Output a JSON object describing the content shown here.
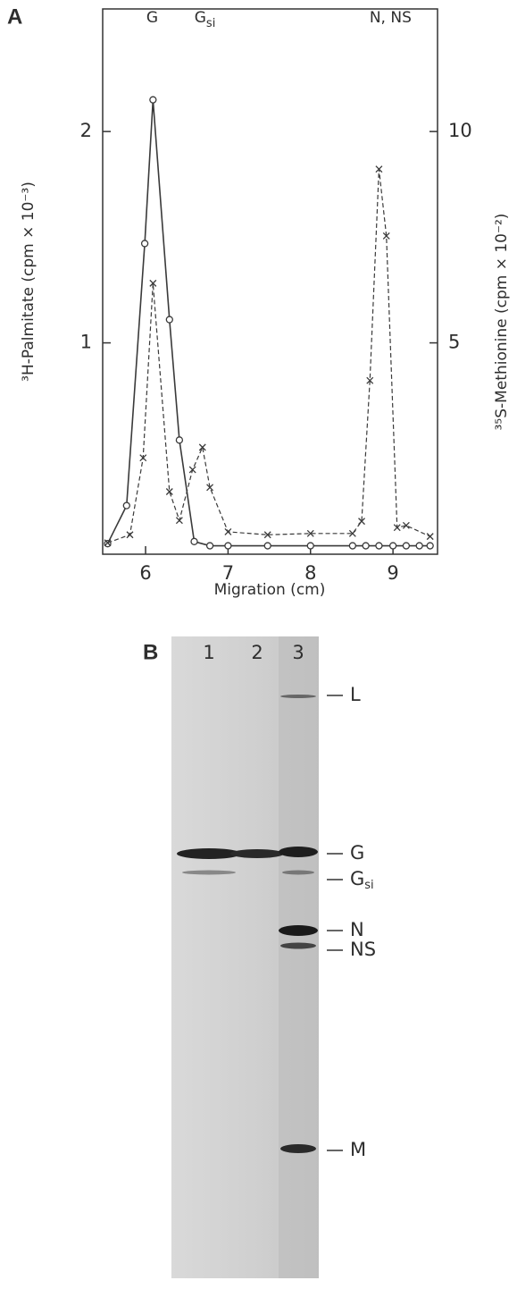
{
  "chart_data": {
    "type": "line",
    "panel": "A",
    "x_label": "Migration (cm)",
    "y_label": "³H-Palmitate (cpm × 10⁻³)",
    "y2_label": "³⁵S-Methionine (cpm × 10⁻²)",
    "annotations": [
      {
        "base": "G",
        "x": 6.08
      },
      {
        "base": "G",
        "sub": "si",
        "x": 6.72
      },
      {
        "base": "N, NS",
        "x": 8.97
      }
    ],
    "xlim": [
      5.48,
      9.54
    ],
    "xticks": [
      6,
      7,
      8,
      9
    ],
    "ylim": [
      0,
      2.58
    ],
    "yticks": [
      1,
      2
    ],
    "y2lim": [
      0,
      12.9
    ],
    "y2ticks": [
      5,
      10
    ],
    "series": [
      {
        "color": "#3a3a3a",
        "style": "solid",
        "marker": "circle",
        "x": [
          5.54,
          5.77,
          5.99,
          6.09,
          6.29,
          6.41,
          6.59,
          6.78,
          7.0,
          7.48,
          8.0,
          8.51,
          8.67,
          8.83,
          9.0,
          9.16,
          9.32,
          9.45
        ],
        "values": [
          0.05,
          0.23,
          1.47,
          2.15,
          1.11,
          0.54,
          0.06,
          0.04,
          0.04,
          0.04,
          0.04,
          0.04,
          0.04,
          0.04,
          0.04,
          0.04,
          0.04,
          0.04
        ]
      },
      {
        "color": "#3a3a3a",
        "style": "dashed",
        "marker": "x",
        "axis": "y2",
        "x": [
          5.54,
          5.81,
          5.97,
          6.09,
          6.29,
          6.41,
          6.57,
          6.69,
          6.78,
          7.0,
          7.48,
          8.0,
          8.51,
          8.62,
          8.72,
          8.83,
          8.92,
          9.05,
          9.16,
          9.45
        ],
        "values": [
          0.27,
          0.46,
          2.28,
          6.41,
          1.48,
          0.8,
          2.0,
          2.53,
          1.58,
          0.53,
          0.46,
          0.49,
          0.49,
          0.78,
          4.11,
          9.11,
          7.53,
          0.63,
          0.68,
          0.42
        ]
      }
    ]
  },
  "gel": {
    "panel": "B",
    "lanes": [
      "1",
      "2",
      "3"
    ],
    "bands": [
      {
        "base": "L"
      },
      {
        "base": "G"
      },
      {
        "base": "G",
        "sub": "si"
      },
      {
        "base": "N"
      },
      {
        "base": "NS"
      },
      {
        "base": "M"
      }
    ]
  }
}
